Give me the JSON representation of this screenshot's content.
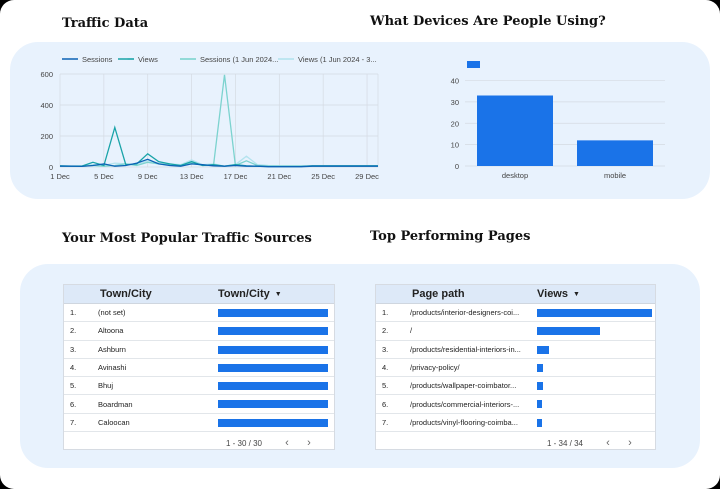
{
  "sections": {
    "traffic_title": "Traffic Data",
    "devices_title": "What Devices Are People Using?",
    "sources_title": "Your Most Popular Traffic Sources",
    "pages_title": "Top Performing Pages"
  },
  "colors": {
    "panel": "#e8f2fd",
    "sessions": "#0b63b5",
    "views": "#19a3a8",
    "sessions_prev": "#7cd3cf",
    "views_prev": "#b3e3ee",
    "bar": "#1a73e8"
  },
  "chart_data": [
    {
      "type": "line",
      "legend": [
        "Sessions",
        "Views",
        "Sessions (1 Jun 2024...",
        "Views (1 Jun 2024 - 3..."
      ],
      "legend_position": "top",
      "x_ticks": [
        "1 Dec",
        "5 Dec",
        "9 Dec",
        "13 Dec",
        "17 Dec",
        "21 Dec",
        "25 Dec",
        "29 Dec"
      ],
      "y_ticks": [
        "0",
        "200",
        "400",
        "600"
      ],
      "ylim": [
        0,
        600
      ],
      "grid": true,
      "x": [
        "1 Dec",
        "2 Dec",
        "3 Dec",
        "4 Dec",
        "5 Dec",
        "6 Dec",
        "7 Dec",
        "8 Dec",
        "9 Dec",
        "10 Dec",
        "11 Dec",
        "12 Dec",
        "13 Dec",
        "14 Dec",
        "15 Dec",
        "16 Dec",
        "17 Dec",
        "18 Dec",
        "19 Dec",
        "20 Dec",
        "21 Dec",
        "22 Dec",
        "23 Dec",
        "24 Dec",
        "25 Dec",
        "26 Dec",
        "27 Dec",
        "28 Dec",
        "29 Dec",
        "30 Dec"
      ],
      "series": [
        {
          "name": "Sessions",
          "values": [
            5,
            5,
            4,
            10,
            20,
            5,
            10,
            25,
            50,
            20,
            10,
            5,
            20,
            15,
            8,
            5,
            10,
            5,
            5,
            2,
            2,
            2,
            2,
            5,
            5,
            5,
            5,
            5,
            5,
            5
          ]
        },
        {
          "name": "Views",
          "values": [
            8,
            5,
            6,
            30,
            10,
            255,
            15,
            20,
            85,
            35,
            20,
            10,
            35,
            10,
            15,
            5,
            15,
            8,
            5,
            3,
            3,
            3,
            3,
            8,
            8,
            8,
            8,
            8,
            8,
            8
          ]
        },
        {
          "name": "Sessions (1 Jun 2024...",
          "values": [
            5,
            5,
            5,
            10,
            5,
            10,
            20,
            10,
            30,
            20,
            15,
            10,
            25,
            10,
            10,
            595,
            10,
            40,
            10,
            5,
            5,
            5,
            5,
            5,
            5,
            5,
            5,
            5,
            5,
            5
          ]
        },
        {
          "name": "Views (1 Jun 2024 - 3...",
          "values": [
            8,
            8,
            8,
            15,
            10,
            25,
            20,
            15,
            40,
            25,
            20,
            15,
            45,
            15,
            20,
            5,
            15,
            70,
            15,
            10,
            8,
            8,
            8,
            8,
            8,
            8,
            8,
            8,
            8,
            8
          ]
        }
      ]
    },
    {
      "type": "bar",
      "categories": [
        "desktop",
        "mobile"
      ],
      "values": [
        33,
        12
      ],
      "y_ticks": [
        "0",
        "10",
        "20",
        "30",
        "40"
      ],
      "ylim": [
        0,
        44
      ],
      "grid": true
    }
  ],
  "sources_table": {
    "col1": "Town/City",
    "col2": "Town/City",
    "rows": [
      {
        "num": "1.",
        "name": "(not set)",
        "fill": 1.0
      },
      {
        "num": "2.",
        "name": "Altoona",
        "fill": 1.0
      },
      {
        "num": "3.",
        "name": "Ashburn",
        "fill": 1.0
      },
      {
        "num": "4.",
        "name": "Avinashi",
        "fill": 1.0
      },
      {
        "num": "5.",
        "name": "Bhuj",
        "fill": 1.0
      },
      {
        "num": "6.",
        "name": "Boardman",
        "fill": 1.0
      },
      {
        "num": "7.",
        "name": "Caloocan",
        "fill": 1.0
      }
    ],
    "pagination": "1 - 30 / 30"
  },
  "pages_table": {
    "col1": "Page path",
    "col2": "Views",
    "rows": [
      {
        "num": "1.",
        "name": "/products/interior-designers-coi...",
        "fill": 1.0
      },
      {
        "num": "2.",
        "name": "/",
        "fill": 0.55
      },
      {
        "num": "3.",
        "name": "/products/residential-interiors-in...",
        "fill": 0.1
      },
      {
        "num": "4.",
        "name": "/privacy-policy/",
        "fill": 0.05
      },
      {
        "num": "5.",
        "name": "/products/wallpaper-coimbator...",
        "fill": 0.05
      },
      {
        "num": "6.",
        "name": "/products/commercial-interiors-...",
        "fill": 0.04
      },
      {
        "num": "7.",
        "name": "/products/vinyl-flooring-coimba...",
        "fill": 0.04
      }
    ],
    "pagination": "1 - 34 / 34"
  }
}
